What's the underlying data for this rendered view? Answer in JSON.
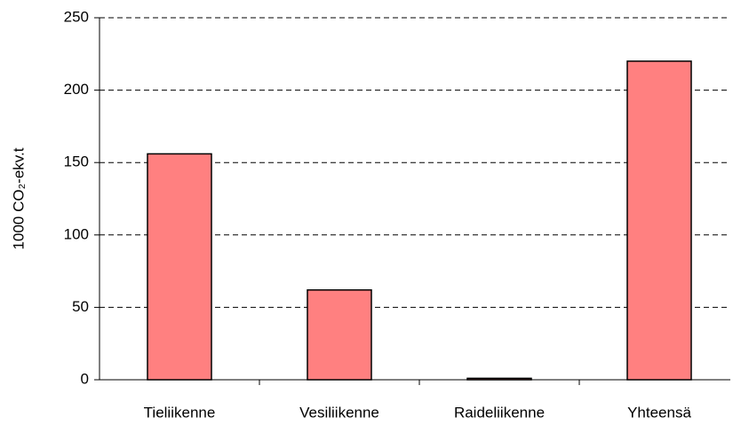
{
  "chart_data": {
    "type": "bar",
    "y_label": "1000 CO₂-ekv.t",
    "categories": [
      "Tieliikenne",
      "Vesiliikenne",
      "Raideliikenne",
      "Yhteensä"
    ],
    "values": [
      156,
      62,
      1,
      220
    ],
    "color": "#ff8080",
    "ylim": [
      0,
      250
    ],
    "yticks": [
      0,
      50,
      100,
      150,
      200,
      250
    ],
    "grid": true
  }
}
